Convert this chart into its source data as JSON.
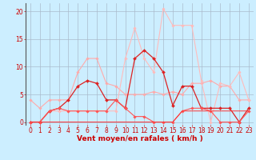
{
  "x": [
    0,
    1,
    2,
    3,
    4,
    5,
    6,
    7,
    8,
    9,
    10,
    11,
    12,
    13,
    14,
    15,
    16,
    17,
    18,
    19,
    20,
    21,
    22,
    23
  ],
  "series": [
    {
      "color": "#ffaaaa",
      "linewidth": 0.8,
      "marker": "D",
      "markersize": 1.8,
      "values": [
        4,
        2.5,
        4,
        4,
        4,
        9,
        11.5,
        11.5,
        7,
        6.5,
        5,
        5,
        5,
        5.5,
        5,
        5.5,
        5,
        7,
        7,
        7.5,
        6.5,
        6.5,
        4,
        4
      ]
    },
    {
      "color": "#ffbbbb",
      "linewidth": 0.8,
      "marker": "D",
      "markersize": 1.8,
      "values": [
        0,
        0,
        2,
        2,
        2,
        2,
        2,
        2,
        2,
        2,
        11.5,
        17,
        11.5,
        9,
        20.5,
        17.5,
        17.5,
        17.5,
        7.5,
        0,
        7,
        6.5,
        9,
        4
      ]
    },
    {
      "color": "#dd2222",
      "linewidth": 0.9,
      "marker": "D",
      "markersize": 2.0,
      "values": [
        0,
        0,
        2,
        2.5,
        4,
        6.5,
        7.5,
        7,
        4,
        4,
        2.5,
        11.5,
        13,
        11.5,
        9,
        3,
        6.5,
        6.5,
        2.5,
        2.5,
        2.5,
        2.5,
        0,
        2.5
      ]
    },
    {
      "color": "#ff5555",
      "linewidth": 0.8,
      "marker": "D",
      "markersize": 1.8,
      "values": [
        0,
        0,
        2,
        2.5,
        2,
        2,
        2,
        2,
        2,
        4,
        2.5,
        1,
        1,
        0,
        0,
        0,
        2,
        2.5,
        2.5,
        2,
        0,
        0,
        0,
        2
      ]
    },
    {
      "color": "#ff3333",
      "linewidth": 0.7,
      "marker": null,
      "markersize": 0,
      "values": [
        0,
        0,
        0,
        0,
        0,
        0,
        0,
        0,
        0,
        0,
        0,
        0,
        0,
        0,
        0,
        0,
        2,
        2,
        2,
        2,
        2,
        2,
        2,
        2
      ]
    }
  ],
  "background_color": "#cceeff",
  "grid_color": "#aabbcc",
  "xlabel": "Vent moyen/en rafales ( km/h )",
  "xlabel_color": "#cc0000",
  "xlabel_fontsize": 6.5,
  "ylabel_ticks": [
    0,
    5,
    10,
    15,
    20
  ],
  "xticks": [
    0,
    1,
    2,
    3,
    4,
    5,
    6,
    7,
    8,
    9,
    10,
    11,
    12,
    13,
    14,
    15,
    16,
    17,
    18,
    19,
    20,
    21,
    22,
    23
  ],
  "ylim": [
    -0.5,
    21.5
  ],
  "xlim": [
    -0.5,
    23.5
  ],
  "tick_color": "#cc0000",
  "tick_fontsize": 5.5,
  "left_spine_color": "#555555"
}
